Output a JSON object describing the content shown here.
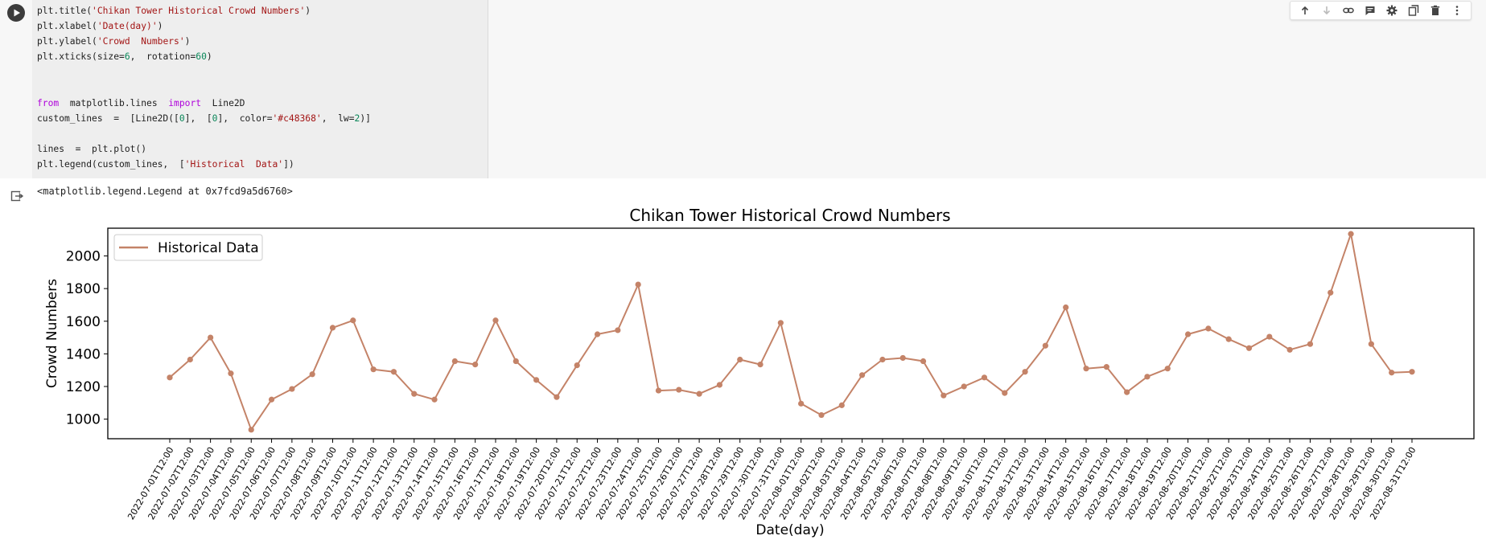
{
  "code_lines": [
    [
      {
        "t": "plt.title("
      },
      {
        "t": "'Chikan Tower Historical Crowd Numbers'",
        "c": "str"
      },
      {
        "t": ")"
      }
    ],
    [
      {
        "t": "plt.xlabel("
      },
      {
        "t": "'Date(day)'",
        "c": "str"
      },
      {
        "t": ")"
      }
    ],
    [
      {
        "t": "plt.ylabel("
      },
      {
        "t": "'Crowd  Numbers'",
        "c": "str"
      },
      {
        "t": ")"
      }
    ],
    [
      {
        "t": "plt.xticks(size="
      },
      {
        "t": "6",
        "c": "num"
      },
      {
        "t": ",  rotation="
      },
      {
        "t": "60",
        "c": "num"
      },
      {
        "t": ")"
      }
    ],
    [],
    [],
    [
      {
        "t": "from",
        "c": "kw"
      },
      {
        "t": "  matplotlib.lines  "
      },
      {
        "t": "import",
        "c": "kw"
      },
      {
        "t": "  Line2D"
      }
    ],
    [
      {
        "t": "custom_lines  =  [Line2D(["
      },
      {
        "t": "0",
        "c": "num"
      },
      {
        "t": "],  ["
      },
      {
        "t": "0",
        "c": "num"
      },
      {
        "t": "],  color="
      },
      {
        "t": "'#c48368'",
        "c": "str"
      },
      {
        "t": ",  lw="
      },
      {
        "t": "2",
        "c": "num"
      },
      {
        "t": ")]"
      }
    ],
    [],
    [
      {
        "t": "lines  =  plt.plot()"
      }
    ],
    [
      {
        "t": "plt.legend(custom_lines,  ["
      },
      {
        "t": "'Historical  Data'",
        "c": "str"
      },
      {
        "t": "])"
      }
    ]
  ],
  "toolbar": {
    "icons": [
      "move-up-icon",
      "move-down-icon",
      "link-icon",
      "comment-icon",
      "settings-gear-icon",
      "mirror-cell-icon",
      "delete-trash-icon",
      "more-options-icon"
    ]
  },
  "output": {
    "text": "<matplotlib.legend.Legend at 0x7fcd9a5d6760>"
  },
  "colors": {
    "line": "#c48368",
    "axes": "#000000"
  },
  "chart_data": {
    "type": "line",
    "title": "Chikan Tower Historical Crowd Numbers",
    "xlabel": "Date(day)",
    "ylabel": "Crowd Numbers",
    "ylim": [
      880,
      2170
    ],
    "yticks": [
      1000,
      1200,
      1400,
      1600,
      1800,
      2000
    ],
    "legend": {
      "label": "Historical Data",
      "position": "upper-left"
    },
    "grid": false,
    "x": [
      "2022-07-01T12:00",
      "2022-07-02T12:00",
      "2022-07-03T12:00",
      "2022-07-04T12:00",
      "2022-07-05T12:00",
      "2022-07-06T12:00",
      "2022-07-07T12:00",
      "2022-07-08T12:00",
      "2022-07-09T12:00",
      "2022-07-10T12:00",
      "2022-07-11T12:00",
      "2022-07-12T12:00",
      "2022-07-13T12:00",
      "2022-07-14T12:00",
      "2022-07-15T12:00",
      "2022-07-16T12:00",
      "2022-07-17T12:00",
      "2022-07-18T12:00",
      "2022-07-19T12:00",
      "2022-07-20T12:00",
      "2022-07-21T12:00",
      "2022-07-22T12:00",
      "2022-07-23T12:00",
      "2022-07-24T12:00",
      "2022-07-25T12:00",
      "2022-07-26T12:00",
      "2022-07-27T12:00",
      "2022-07-28T12:00",
      "2022-07-29T12:00",
      "2022-07-30T12:00",
      "2022-07-31T12:00",
      "2022-08-01T12:00",
      "2022-08-02T12:00",
      "2022-08-03T12:00",
      "2022-08-04T12:00",
      "2022-08-05T12:00",
      "2022-08-06T12:00",
      "2022-08-07T12:00",
      "2022-08-08T12:00",
      "2022-08-09T12:00",
      "2022-08-10T12:00",
      "2022-08-11T12:00",
      "2022-08-12T12:00",
      "2022-08-13T12:00",
      "2022-08-14T12:00",
      "2022-08-15T12:00",
      "2022-08-16T12:00",
      "2022-08-17T12:00",
      "2022-08-18T12:00",
      "2022-08-19T12:00",
      "2022-08-20T12:00",
      "2022-08-21T12:00",
      "2022-08-22T12:00",
      "2022-08-23T12:00",
      "2022-08-24T12:00",
      "2022-08-25T12:00",
      "2022-08-26T12:00",
      "2022-08-27T12:00",
      "2022-08-28T12:00",
      "2022-08-29T12:00",
      "2022-08-30T12:00",
      "2022-08-31T12:00"
    ],
    "series": [
      {
        "name": "Historical Data",
        "values": [
          1255,
          1365,
          1500,
          1280,
          935,
          1120,
          1185,
          1275,
          1560,
          1605,
          1305,
          1290,
          1155,
          1120,
          1355,
          1335,
          1605,
          1355,
          1240,
          1135,
          1330,
          1520,
          1545,
          1825,
          1175,
          1180,
          1155,
          1210,
          1365,
          1335,
          1590,
          1095,
          1025,
          1085,
          1270,
          1365,
          1375,
          1355,
          1145,
          1200,
          1255,
          1160,
          1290,
          1450,
          1685,
          1310,
          1320,
          1165,
          1260,
          1310,
          1520,
          1555,
          1490,
          1435,
          1505,
          1425,
          1460,
          1775,
          2135,
          1460,
          1285,
          1290
        ]
      }
    ]
  }
}
